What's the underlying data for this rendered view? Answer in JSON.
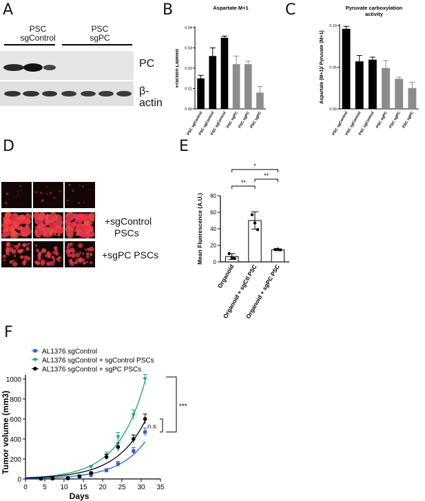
{
  "panels": {
    "A": {
      "letter": "A",
      "group1_line1": "PSC",
      "group1_line2": "sgControl",
      "group2_line1": "PSC",
      "group2_line2": "sgPC",
      "label_pc": "PC",
      "label_actin_1": "β-",
      "label_actin_2": "actin"
    },
    "B": {
      "letter": "B"
    },
    "C": {
      "letter": "C"
    },
    "D": {
      "letter": "D",
      "label_ctrl_1": "+sgControl",
      "label_ctrl_2": "PSCs",
      "label_pc": "+sgPC PSCs"
    },
    "E": {
      "letter": "E"
    },
    "F": {
      "letter": "F"
    }
  },
  "chart_data": [
    {
      "id": "B",
      "type": "bar",
      "title": "Aspartate M+1",
      "xlabel": "",
      "ylabel": "Fraction Labeled",
      "ylim": [
        0,
        0.04
      ],
      "yticks": [
        "0.00",
        "0.01",
        "0.02",
        "0.03",
        "0.04"
      ],
      "categories": [
        "PSC sgControl",
        "PSC sgControl",
        "PSC sgControl",
        "PSC sgPC",
        "PSC sgPC",
        "PSC sgPC"
      ],
      "values": [
        0.015,
        0.026,
        0.035,
        0.022,
        0.022,
        0.008
      ],
      "errors": [
        0.0015,
        0.004,
        0.0008,
        0.004,
        0.0015,
        0.003
      ],
      "colors": [
        "#000000",
        "#000000",
        "#000000",
        "#8c8c8c",
        "#8c8c8c",
        "#8c8c8c"
      ]
    },
    {
      "id": "C",
      "type": "bar",
      "title": "Pyruvate carboxylation activity",
      "xlabel": "",
      "ylabel": "Aspartate (M+1)/ Pyruvate (M+1)",
      "ylim": [
        0,
        0.1
      ],
      "yticks": [
        "0.00",
        "0.05",
        "0.10"
      ],
      "categories": [
        "PSC sgControl",
        "PSC sgControl",
        "PSC sgControl",
        "PSC sgPC",
        "PSC sgPC",
        "PSC sgPC"
      ],
      "values": [
        0.096,
        0.057,
        0.059,
        0.049,
        0.036,
        0.025
      ],
      "errors": [
        0.003,
        0.007,
        0.003,
        0.009,
        0.002,
        0.007
      ],
      "colors": [
        "#000000",
        "#000000",
        "#000000",
        "#8c8c8c",
        "#8c8c8c",
        "#8c8c8c"
      ]
    },
    {
      "id": "E",
      "type": "bar",
      "title": "",
      "xlabel": "",
      "ylabel": "Mean Fluorescence (A.U.)",
      "ylim": [
        0,
        80
      ],
      "yticks": [
        "0",
        "20",
        "40",
        "60",
        "80"
      ],
      "categories": [
        "Organoid",
        "Organoid + sgCtl PSC",
        "Organoid + sgPC PSC"
      ],
      "values": [
        6.5,
        50,
        14.5
      ],
      "errors": [
        3.5,
        10.5,
        1.0
      ],
      "points": [
        [
          10,
          5,
          4
        ],
        [
          57,
          47,
          39
        ],
        [
          15,
          15.5,
          14.5
        ]
      ],
      "significance": [
        {
          "from": 0,
          "to": 1,
          "label": "**"
        },
        {
          "from": 1,
          "to": 2,
          "label": "**"
        },
        {
          "from": 0,
          "to": 2,
          "label": "*"
        }
      ]
    },
    {
      "id": "F",
      "type": "line",
      "title": "",
      "xlabel": "Days",
      "ylabel": "Tumor volume (mm3)",
      "xlim": [
        0,
        35
      ],
      "ylim": [
        0,
        1000
      ],
      "xticks": [
        "0",
        "5",
        "10",
        "15",
        "20",
        "25",
        "30",
        "35"
      ],
      "yticks": [
        "0",
        "200",
        "400",
        "600",
        "800",
        "1000"
      ],
      "legend_position": "top-left",
      "series": [
        {
          "name": "AL1376 sgControl",
          "color": "#2f5fd0",
          "marker": "square",
          "x": [
            4,
            7,
            11,
            14,
            17,
            21,
            24,
            28,
            31
          ],
          "y": [
            2,
            3,
            5,
            15,
            38,
            85,
            150,
            280,
            470
          ],
          "err": [
            2,
            2,
            3,
            6,
            10,
            18,
            25,
            35,
            40
          ],
          "fit": [
            5,
            0.139
          ]
        },
        {
          "name": "AL1376 sgControl + sgControl PSCs",
          "color": "#1aa079",
          "marker": "triangle",
          "x": [
            4,
            7,
            11,
            14,
            17,
            21,
            24,
            28,
            31
          ],
          "y": [
            5,
            8,
            12,
            30,
            120,
            240,
            420,
            640,
            1000
          ],
          "err": [
            2,
            3,
            4,
            8,
            15,
            30,
            45,
            50,
            45
          ],
          "fit": [
            12,
            0.142
          ]
        },
        {
          "name": "AL1376 sgControl + sgPC PSCs",
          "color": "#000000",
          "marker": "circle",
          "x": [
            4,
            7,
            11,
            14,
            17,
            21,
            24,
            28,
            31
          ],
          "y": [
            3,
            5,
            8,
            25,
            60,
            220,
            320,
            400,
            600
          ],
          "err": [
            2,
            2,
            3,
            6,
            10,
            25,
            40,
            40,
            50
          ],
          "fit": [
            10,
            0.131
          ]
        }
      ],
      "significance": [
        {
          "label": "***",
          "y_from": 1000,
          "y_to": 470
        },
        {
          "label": "n.s.",
          "y_from": 600,
          "y_to": 470
        }
      ]
    }
  ]
}
